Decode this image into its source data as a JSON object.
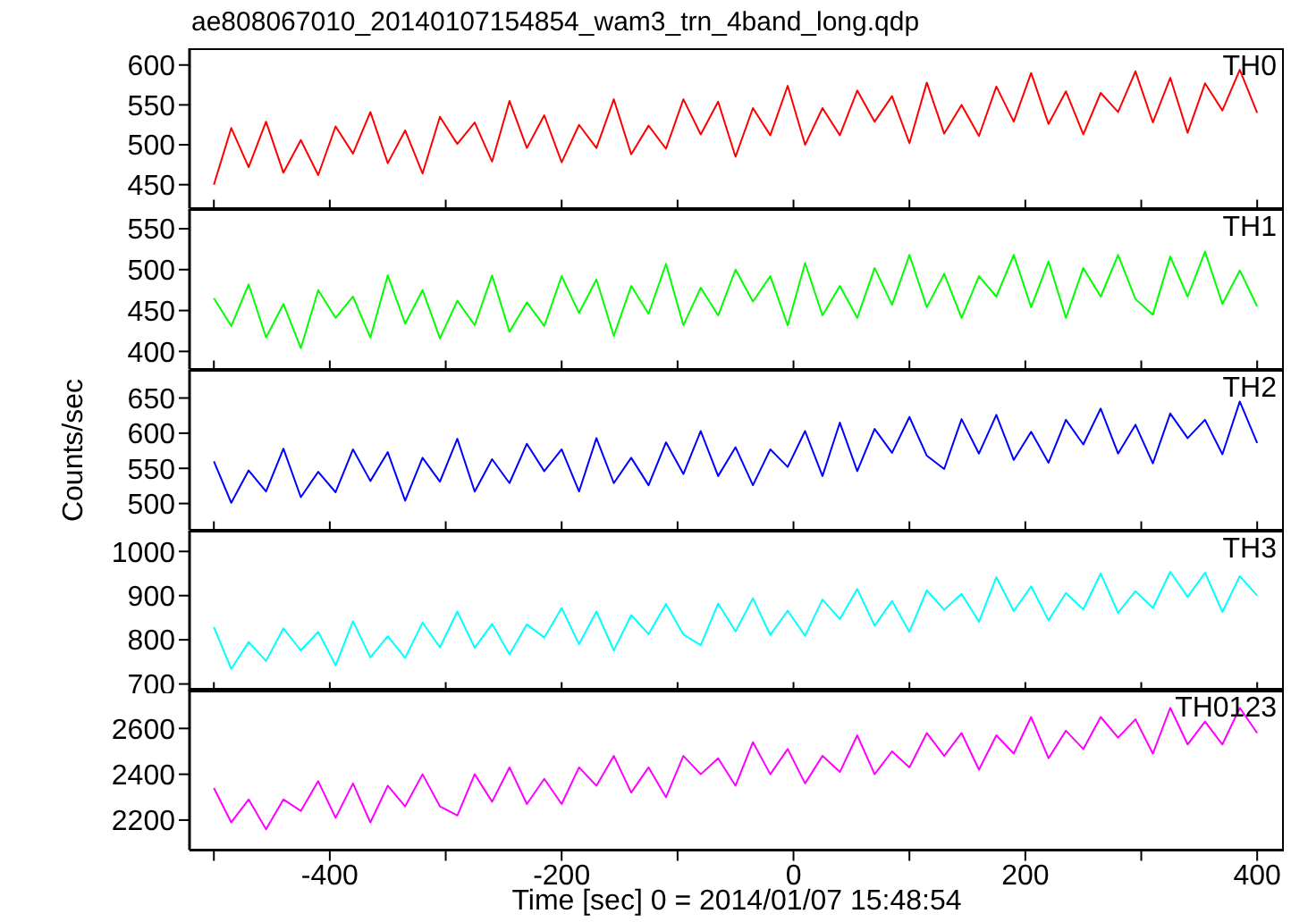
{
  "chart_data": [
    {
      "type": "line",
      "title": "ae808067010_20140107154854_wam3_trn_4band_long.qdp",
      "tick_labels": "y",
      "legend": "top right",
      "xlim": [
        -521,
        423
      ],
      "ylim": [
        420,
        621
      ],
      "yticks": [
        450,
        500,
        550,
        600
      ],
      "xticks": [
        {
          "value": -500,
          "label": null
        },
        -400,
        {
          "value": -300,
          "label": null
        },
        -200,
        {
          "value": -100,
          "label": null
        },
        0,
        {
          "value": 100,
          "label": null
        },
        200,
        {
          "value": 300,
          "label": null
        },
        400
      ],
      "x": [
        -500,
        -485,
        -470,
        -455,
        -440,
        -425,
        -410,
        -395,
        -380,
        -365,
        -350,
        -335,
        -320,
        -305,
        -290,
        -275,
        -260,
        -245,
        -230,
        -215,
        -200,
        -185,
        -170,
        -155,
        -140,
        -125,
        -110,
        -95,
        -80,
        -65,
        -50,
        -35,
        -20,
        -5,
        10,
        25,
        40,
        55,
        70,
        85,
        100,
        115,
        130,
        145,
        160,
        175,
        190,
        205,
        220,
        235,
        250,
        265,
        280,
        295,
        310,
        325,
        340,
        355,
        370,
        385,
        400
      ],
      "series": [
        {
          "name": "TH0",
          "color": "#ff0000",
          "values": [
            450,
            521,
            472,
            529,
            465,
            506,
            462,
            523,
            489,
            541,
            477,
            518,
            464,
            535,
            501,
            528,
            479,
            555,
            496,
            537,
            478,
            525,
            496,
            557,
            488,
            524,
            495,
            557,
            513,
            554,
            485,
            546,
            512,
            574,
            500,
            546,
            512,
            568,
            529,
            561,
            502,
            578,
            514,
            550,
            511,
            573,
            529,
            590,
            526,
            567,
            513,
            565,
            541,
            592,
            528,
            584,
            515,
            577,
            543,
            594,
            540
          ]
        }
      ]
    },
    {
      "type": "line",
      "tick_labels": "y",
      "legend": "top right",
      "xlim": [
        -521,
        423
      ],
      "ylim": [
        378,
        574
      ],
      "yticks": [
        400,
        450,
        500,
        550
      ],
      "xticks": [
        {
          "value": -500,
          "label": null
        },
        -400,
        {
          "value": -300,
          "label": null
        },
        -200,
        {
          "value": -100,
          "label": null
        },
        0,
        {
          "value": 100,
          "label": null
        },
        200,
        {
          "value": 300,
          "label": null
        },
        400
      ],
      "x": [
        -500,
        -485,
        -470,
        -455,
        -440,
        -425,
        -410,
        -395,
        -380,
        -365,
        -350,
        -335,
        -320,
        -305,
        -290,
        -275,
        -260,
        -245,
        -230,
        -215,
        -200,
        -185,
        -170,
        -155,
        -140,
        -125,
        -110,
        -95,
        -80,
        -65,
        -50,
        -35,
        -20,
        -5,
        10,
        25,
        40,
        55,
        70,
        85,
        100,
        115,
        130,
        145,
        160,
        175,
        190,
        205,
        220,
        235,
        250,
        265,
        280,
        295,
        310,
        325,
        340,
        355,
        370,
        385,
        400
      ],
      "series": [
        {
          "name": "TH1",
          "color": "#00ff00",
          "values": [
            465,
            431,
            482,
            417,
            458,
            404,
            475,
            441,
            467,
            417,
            493,
            434,
            475,
            416,
            462,
            432,
            493,
            424,
            460,
            431,
            492,
            447,
            488,
            419,
            480,
            446,
            507,
            432,
            478,
            444,
            500,
            461,
            492,
            432,
            508,
            444,
            480,
            441,
            502,
            457,
            518,
            454,
            495,
            441,
            492,
            467,
            518,
            454,
            510,
            441,
            502,
            467,
            518,
            464,
            445,
            516,
            467,
            522,
            458,
            499,
            455
          ]
        }
      ]
    },
    {
      "type": "line",
      "ylabel": "Counts/sec",
      "tick_labels": "y",
      "legend": "top right",
      "xlim": [
        -521,
        423
      ],
      "ylim": [
        462,
        690
      ],
      "yticks": [
        500,
        550,
        600,
        650
      ],
      "xticks": [
        {
          "value": -500,
          "label": null
        },
        -400,
        {
          "value": -300,
          "label": null
        },
        -200,
        {
          "value": -100,
          "label": null
        },
        0,
        {
          "value": 100,
          "label": null
        },
        200,
        {
          "value": 300,
          "label": null
        },
        400
      ],
      "x": [
        -500,
        -485,
        -470,
        -455,
        -440,
        -425,
        -410,
        -395,
        -380,
        -365,
        -350,
        -335,
        -320,
        -305,
        -290,
        -275,
        -260,
        -245,
        -230,
        -215,
        -200,
        -185,
        -170,
        -155,
        -140,
        -125,
        -110,
        -95,
        -80,
        -65,
        -50,
        -35,
        -20,
        -5,
        10,
        25,
        40,
        55,
        70,
        85,
        100,
        115,
        130,
        145,
        160,
        175,
        190,
        205,
        220,
        235,
        250,
        265,
        280,
        295,
        310,
        325,
        340,
        355,
        370,
        385,
        400
      ],
      "series": [
        {
          "name": "TH2",
          "color": "#0000ff",
          "values": [
            560,
            501,
            547,
            517,
            578,
            509,
            545,
            516,
            577,
            532,
            573,
            504,
            565,
            531,
            592,
            517,
            563,
            529,
            585,
            546,
            577,
            517,
            593,
            529,
            565,
            526,
            587,
            542,
            603,
            539,
            580,
            526,
            577,
            552,
            603,
            539,
            615,
            546,
            606,
            572,
            623,
            568,
            549,
            620,
            571,
            626,
            562,
            602,
            558,
            619,
            584,
            635,
            571,
            612,
            557,
            628,
            593,
            619,
            570,
            645,
            586
          ]
        }
      ]
    },
    {
      "type": "line",
      "tick_labels": "y",
      "legend": "top right",
      "xlim": [
        -521,
        423
      ],
      "ylim": [
        684,
        1047
      ],
      "yticks": [
        700,
        800,
        900,
        1000
      ],
      "xticks": [
        {
          "value": -500,
          "label": null
        },
        -400,
        {
          "value": -300,
          "label": null
        },
        -200,
        {
          "value": -100,
          "label": null
        },
        0,
        {
          "value": 100,
          "label": null
        },
        200,
        {
          "value": 300,
          "label": null
        },
        400
      ],
      "x": [
        -500,
        -485,
        -470,
        -455,
        -440,
        -425,
        -410,
        -395,
        -380,
        -365,
        -350,
        -335,
        -320,
        -305,
        -290,
        -275,
        -260,
        -245,
        -230,
        -215,
        -200,
        -185,
        -170,
        -155,
        -140,
        -125,
        -110,
        -95,
        -80,
        -65,
        -50,
        -35,
        -20,
        -5,
        10,
        25,
        40,
        55,
        70,
        85,
        100,
        115,
        130,
        145,
        160,
        175,
        190,
        205,
        220,
        235,
        250,
        265,
        280,
        295,
        310,
        325,
        340,
        355,
        370,
        385,
        400
      ],
      "series": [
        {
          "name": "TH3",
          "color": "#00ffff",
          "values": [
            829,
            734,
            795,
            752,
            826,
            776,
            818,
            742,
            842,
            760,
            808,
            759,
            839,
            783,
            864,
            782,
            836,
            767,
            835,
            805,
            872,
            790,
            864,
            776,
            856,
            813,
            881,
            812,
            788,
            882,
            819,
            894,
            811,
            866,
            809,
            891,
            847,
            915,
            832,
            888,
            818,
            912,
            868,
            904,
            841,
            942,
            865,
            921,
            844,
            906,
            869,
            950,
            861,
            910,
            872,
            954,
            897,
            952,
            863,
            944,
            900
          ]
        }
      ]
    },
    {
      "type": "line",
      "xlabel": "Time [sec] 0 = 2014/01/07 15:48:54",
      "legend": "top right",
      "xlim": [
        -521,
        423
      ],
      "ylim": [
        2069,
        2769
      ],
      "yticks": [
        2200,
        2400,
        2600
      ],
      "xticks": [
        {
          "value": -500,
          "label": null
        },
        -400,
        {
          "value": -300,
          "label": null
        },
        -200,
        {
          "value": -100,
          "label": null
        },
        0,
        {
          "value": 100,
          "label": null
        },
        200,
        {
          "value": 300,
          "label": null
        },
        400
      ],
      "x": [
        -500,
        -485,
        -470,
        -455,
        -440,
        -425,
        -410,
        -395,
        -380,
        -365,
        -350,
        -335,
        -320,
        -305,
        -290,
        -275,
        -260,
        -245,
        -230,
        -215,
        -200,
        -185,
        -170,
        -155,
        -140,
        -125,
        -110,
        -95,
        -80,
        -65,
        -50,
        -35,
        -20,
        -5,
        10,
        25,
        40,
        55,
        70,
        85,
        100,
        115,
        130,
        145,
        160,
        175,
        190,
        205,
        220,
        235,
        250,
        265,
        280,
        295,
        310,
        325,
        340,
        355,
        370,
        385,
        400
      ],
      "series": [
        {
          "name": "TH0123",
          "color": "#ff00ff",
          "values": [
            2340,
            2190,
            2290,
            2160,
            2290,
            2240,
            2370,
            2210,
            2360,
            2190,
            2350,
            2260,
            2400,
            2260,
            2220,
            2400,
            2280,
            2430,
            2270,
            2380,
            2270,
            2430,
            2350,
            2480,
            2320,
            2430,
            2300,
            2480,
            2400,
            2470,
            2350,
            2540,
            2400,
            2510,
            2360,
            2480,
            2410,
            2570,
            2400,
            2500,
            2430,
            2580,
            2480,
            2580,
            2420,
            2570,
            2490,
            2650,
            2470,
            2590,
            2510,
            2650,
            2560,
            2640,
            2490,
            2690,
            2530,
            2630,
            2530,
            2690,
            2580
          ]
        }
      ]
    }
  ]
}
